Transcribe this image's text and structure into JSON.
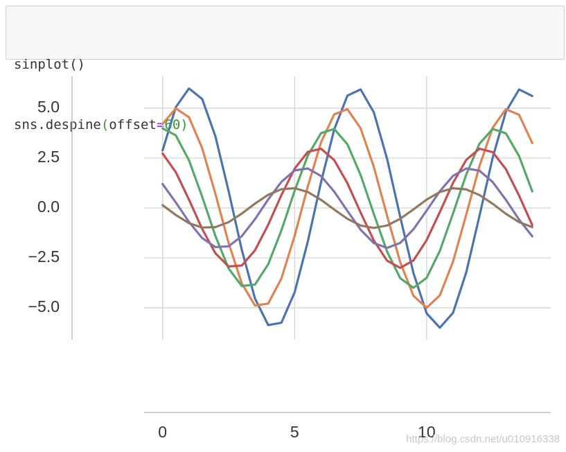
{
  "code": {
    "lines": [
      [
        "sinplot()"
      ],
      [
        "sns.despine",
        "(",
        "offset",
        "=",
        "60",
        ")"
      ]
    ]
  },
  "chart_data": {
    "type": "line",
    "x": [
      0,
      0.5,
      1,
      1.5,
      2,
      2.5,
      3,
      3.5,
      4,
      4.5,
      5,
      5.5,
      6,
      6.5,
      7,
      7.5,
      8,
      8.5,
      9,
      9.5,
      10,
      10.5,
      11,
      11.5,
      12,
      12.5,
      13,
      13.5,
      14
    ],
    "series": [
      {
        "color": "#4c72b0",
        "values": [
          2.88,
          5.05,
          5.99,
          5.46,
          3.59,
          0.85,
          -2.1,
          -4.54,
          -5.87,
          -5.75,
          -4.23,
          -1.68,
          1.29,
          3.94,
          5.63,
          5.94,
          4.79,
          2.47,
          -0.45,
          -3.26,
          -5.28,
          -6.0,
          -5.25,
          -3.22,
          -0.4,
          2.52,
          4.82,
          5.94,
          5.61
        ]
      },
      {
        "color": "#dd8452",
        "values": [
          4.21,
          4.99,
          4.55,
          2.99,
          0.71,
          -1.75,
          -3.78,
          -4.89,
          -4.79,
          -3.53,
          -1.4,
          1.08,
          3.29,
          4.69,
          4.95,
          3.99,
          2.06,
          -0.38,
          -2.72,
          -4.4,
          -5.0,
          -4.38,
          -2.68,
          -0.33,
          2.1,
          4.02,
          4.95,
          4.67,
          3.25
        ]
      },
      {
        "color": "#55a868",
        "values": [
          3.99,
          3.64,
          2.39,
          0.56,
          -1.4,
          -3.03,
          -3.91,
          -3.84,
          -2.82,
          -1.12,
          0.86,
          2.63,
          3.75,
          3.96,
          3.19,
          1.65,
          -0.3,
          -2.18,
          -3.52,
          -4.0,
          -3.5,
          -2.15,
          -0.27,
          1.68,
          3.22,
          3.96,
          3.74,
          2.6,
          0.83
        ]
      },
      {
        "color": "#c44e52",
        "values": [
          2.73,
          1.8,
          0.42,
          -1.05,
          -2.27,
          -2.93,
          -2.88,
          -2.12,
          -0.84,
          0.65,
          1.97,
          2.81,
          2.97,
          2.4,
          1.24,
          -0.23,
          -1.63,
          -2.64,
          -3.0,
          -2.63,
          -1.61,
          -0.2,
          1.26,
          2.41,
          2.97,
          2.8,
          1.95,
          0.62,
          -0.86
        ]
      },
      {
        "color": "#8172b3",
        "values": [
          1.2,
          0.28,
          -0.7,
          -1.51,
          -1.96,
          -1.92,
          -1.41,
          -0.56,
          0.43,
          1.31,
          1.88,
          1.98,
          1.6,
          0.82,
          -0.15,
          -1.09,
          -1.76,
          -2.0,
          -1.75,
          -1.07,
          -0.13,
          0.84,
          1.61,
          1.98,
          1.87,
          1.3,
          0.41,
          -0.58,
          -1.42
        ]
      },
      {
        "color": "#937860",
        "values": [
          0.14,
          -0.35,
          -0.76,
          -0.98,
          -0.96,
          -0.71,
          -0.28,
          0.22,
          0.66,
          0.94,
          0.99,
          0.8,
          0.41,
          -0.08,
          -0.54,
          -0.88,
          -1.0,
          -0.88,
          -0.54,
          -0.07,
          0.42,
          0.8,
          0.99,
          0.93,
          0.65,
          0.21,
          -0.29,
          -0.71,
          -0.96
        ]
      }
    ],
    "xlim": [
      -0.7,
      14.7
    ],
    "xticks": [
      0,
      5,
      10
    ],
    "ylim": [
      -6.6,
      6.6
    ],
    "yticks": [
      {
        "value": -5,
        "label": "−5.0"
      },
      {
        "value": -2.5,
        "label": "−2.5"
      },
      {
        "value": 0,
        "label": "0.0"
      },
      {
        "value": 2.5,
        "label": "2.5"
      },
      {
        "value": 5,
        "label": "5.0"
      }
    ],
    "grid": true
  },
  "watermark": "https://blog.csdn.net/u010916338"
}
